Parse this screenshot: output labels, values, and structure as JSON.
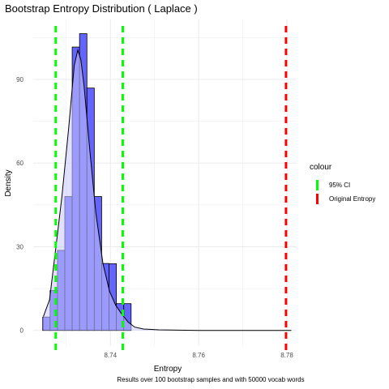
{
  "chart_data": {
    "type": "bar",
    "title": "Bootstrap Entropy Distribution ( Laplace )",
    "xlabel": "Entropy",
    "ylabel": "Density",
    "xlim": [
      8.7225,
      8.7822
    ],
    "ylim": [
      -5.6,
      111.5
    ],
    "x_ticks": [
      8.74,
      8.76,
      8.78
    ],
    "x_tick_labels": [
      "8.74",
      "8.76",
      "8.78"
    ],
    "y_ticks": [
      0,
      30,
      60,
      90
    ],
    "y_tick_labels": [
      "0",
      "30",
      "60",
      "90"
    ],
    "grid": true,
    "histogram": {
      "bin_width": 0.00167,
      "bins": [
        {
          "x0": 8.72465,
          "density": 4.8
        },
        {
          "x0": 8.72632,
          "density": 14.3
        },
        {
          "x0": 8.72799,
          "density": 28.7
        },
        {
          "x0": 8.72966,
          "density": 48.0
        },
        {
          "x0": 8.73133,
          "density": 101.6
        },
        {
          "x0": 8.733,
          "density": 106.4
        },
        {
          "x0": 8.73467,
          "density": 86.9
        },
        {
          "x0": 8.73634,
          "density": 48.0
        },
        {
          "x0": 8.73801,
          "density": 24.0
        },
        {
          "x0": 8.73968,
          "density": 23.9
        },
        {
          "x0": 8.74135,
          "density": 9.6
        },
        {
          "x0": 8.74302,
          "density": 9.6
        }
      ]
    },
    "density_curve": {
      "x": [
        8.7248,
        8.7262,
        8.7275,
        8.729,
        8.7305,
        8.7318,
        8.7326,
        8.7333,
        8.734,
        8.7353,
        8.7367,
        8.7383,
        8.7398,
        8.7412,
        8.7425,
        8.744,
        8.7455,
        8.7475,
        8.751,
        8.76,
        8.77,
        8.781
      ],
      "y": [
        5.0,
        11.0,
        28.0,
        48.0,
        72.0,
        95.0,
        100.5,
        97.0,
        88.0,
        65.0,
        42.0,
        24.0,
        14.0,
        9.0,
        6.0,
        3.0,
        1.2,
        0.5,
        0.2,
        0.0,
        0.0,
        0.0
      ]
    },
    "vlines": [
      {
        "x": 8.7276,
        "color": "#00ff00",
        "legend": "95% CI"
      },
      {
        "x": 8.7428,
        "color": "#00ff00",
        "legend": "95% CI"
      },
      {
        "x": 8.7798,
        "color": "#ff0000",
        "legend": "Original Entropy"
      }
    ],
    "legend": {
      "title": "colour",
      "placement": "right",
      "items": [
        {
          "label": "95% CI",
          "color": "#00ff00"
        },
        {
          "label": "Original Entropy",
          "color": "#ff0000"
        }
      ]
    },
    "colors": {
      "bar_fill": "#6464ff",
      "bar_stroke": "#000000",
      "curve_fill": "#c8c8ff",
      "curve_stroke": "#000000",
      "grid": "#ebebeb"
    },
    "caption": "Results over 100 bootstrap samples and with 50000 vocab words"
  }
}
